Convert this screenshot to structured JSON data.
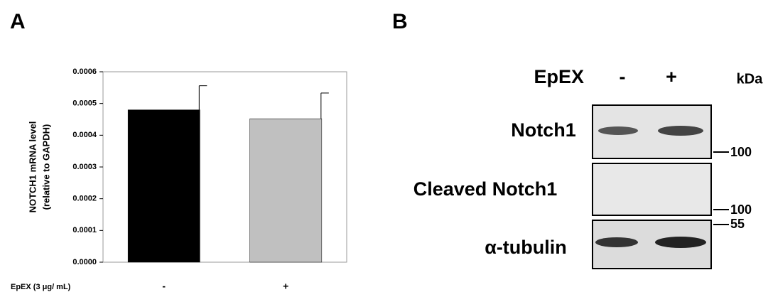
{
  "chart_data": {
    "type": "bar",
    "ylabel": [
      "NOTCH1 mRNA level",
      "(relative to GAPDH)"
    ],
    "xlabel": "EpEX (3 μg/ mL)",
    "categories": [
      "-",
      "+"
    ],
    "values": [
      0.00048,
      0.000452
    ],
    "errors": [
      7.6e-05,
      8.1e-05
    ],
    "colors": [
      "#000000",
      "#c0c0c0"
    ],
    "ylim": [
      0,
      0.0006
    ],
    "yticks": [
      {
        "value": 0,
        "label": "0.0000"
      },
      0.0001,
      0.0002,
      0.0003,
      0.0004,
      0.0005,
      0.0006
    ]
  },
  "panel_a": {
    "label": "A"
  },
  "panel_b": {
    "label": "B",
    "treatment": "EpEX",
    "lanes": [
      "-",
      "+"
    ],
    "unit": "kDa",
    "rows": [
      {
        "label": "Notch1",
        "marker": "100"
      },
      {
        "label": "Cleaved Notch1",
        "marker": "100"
      },
      {
        "label": "α-tubulin",
        "marker": "55"
      }
    ]
  }
}
